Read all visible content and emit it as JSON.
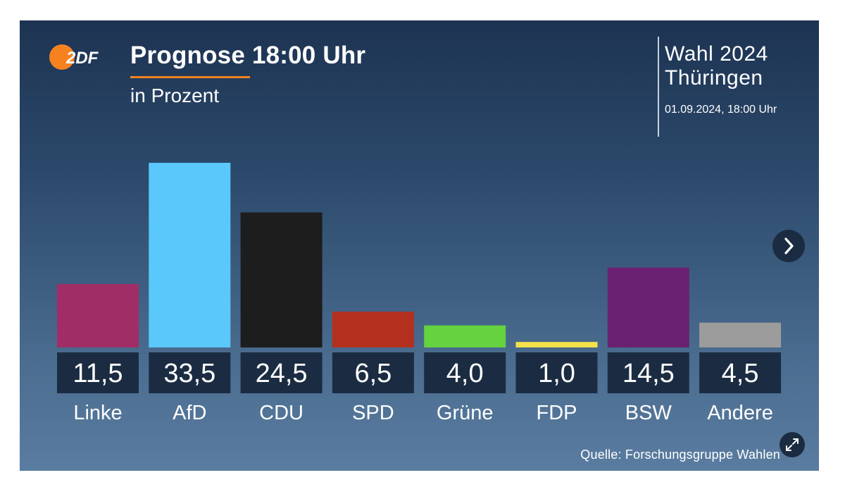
{
  "header": {
    "logo": {
      "text": "2DF",
      "icon": "zdf-logo"
    },
    "title": "Prognose 18:00 Uhr",
    "subtitle": "in Prozent"
  },
  "election": {
    "title_line1": "Wahl 2024",
    "title_line2": "Thüringen",
    "date": "01.09.2024, 18:00 Uhr"
  },
  "footer": {
    "source": "Quelle: Forschungsgruppe Wahlen",
    "expand_icon": "expand-icon"
  },
  "navigation": {
    "next_icon": "chevron-right-icon"
  },
  "colors": {
    "accent": "#f5821f",
    "value_box": "#1b2c42"
  },
  "chart_data": {
    "type": "bar",
    "title": "Prognose 18:00 Uhr",
    "subtitle": "in Prozent",
    "xlabel": "",
    "ylabel": "Prozent",
    "ylim": [
      0,
      33.5
    ],
    "grid": false,
    "categories": [
      "Linke",
      "AfD",
      "CDU",
      "SPD",
      "Grüne",
      "FDP",
      "BSW",
      "Andere"
    ],
    "values": [
      11.5,
      33.5,
      24.5,
      6.5,
      4.0,
      1.0,
      14.5,
      4.5
    ],
    "value_labels": [
      "11,5",
      "33,5",
      "24,5",
      "6,5",
      "4,0",
      "1,0",
      "14,5",
      "4,5"
    ],
    "colors": [
      "#a12d66",
      "#5ac8fb",
      "#1d1d1d",
      "#b3301e",
      "#65d240",
      "#f5e24a",
      "#6a2171",
      "#9c9c9c"
    ]
  }
}
